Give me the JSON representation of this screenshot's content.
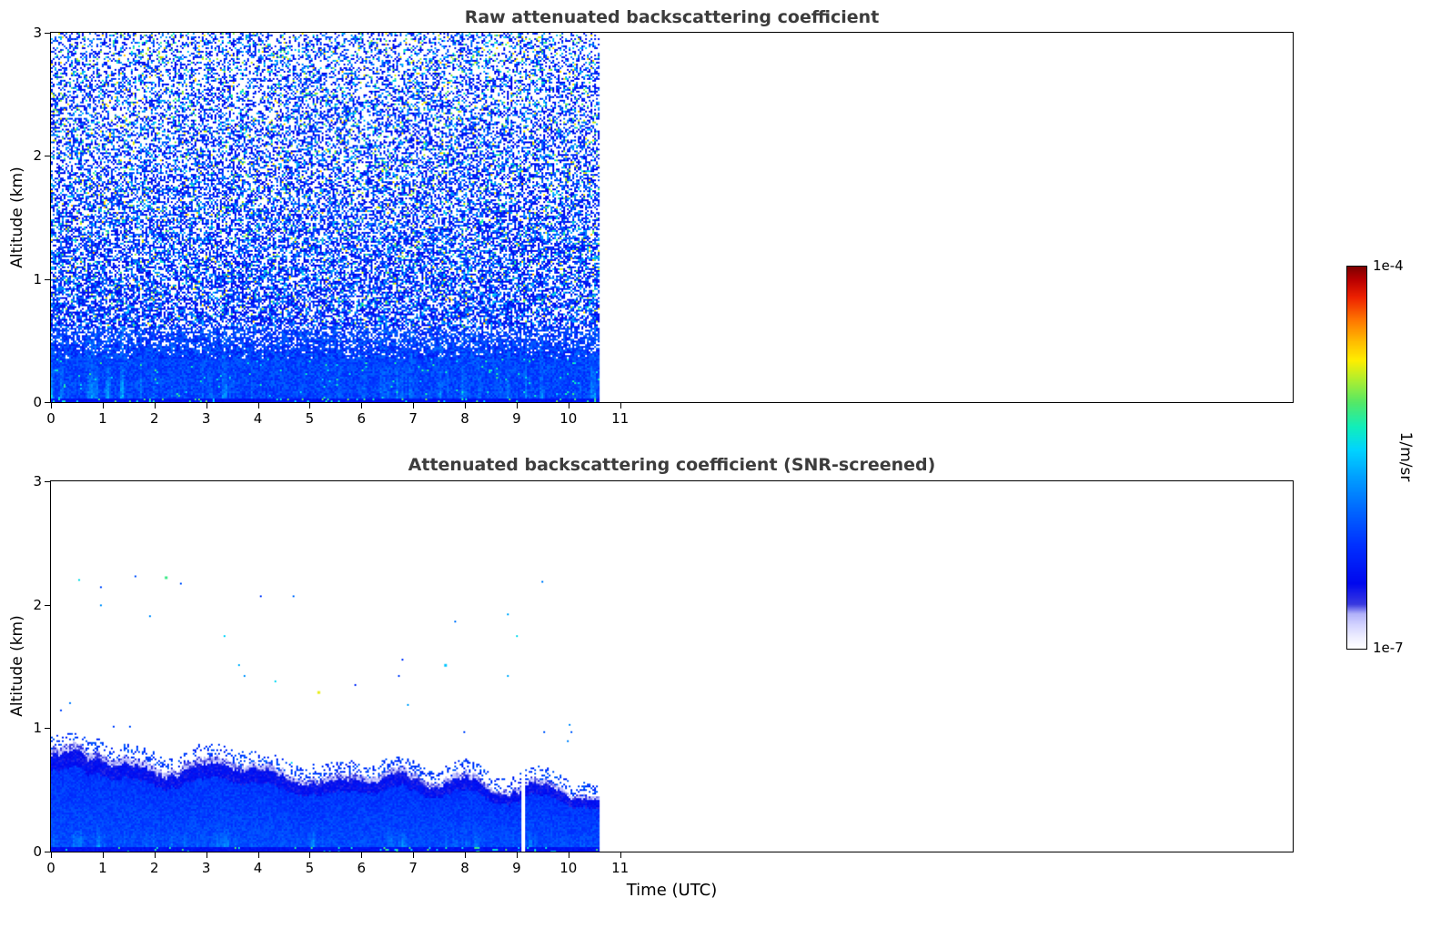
{
  "figure": {
    "xlabel": "Time (UTC)",
    "background": "#ffffff",
    "colorbar": {
      "label": "1/m/sr",
      "top_label": "1e-4",
      "bottom_label": "1e-7",
      "stops": [
        [
          0.0,
          "#ffffff"
        ],
        [
          0.03,
          "#eeeeff"
        ],
        [
          0.06,
          "#d4d4ff"
        ],
        [
          0.09,
          "#b2b2fa"
        ],
        [
          0.115,
          "#3a3ae0"
        ],
        [
          0.17,
          "#0008ee"
        ],
        [
          0.27,
          "#0030ff"
        ],
        [
          0.36,
          "#0066ff"
        ],
        [
          0.45,
          "#00a0ff"
        ],
        [
          0.52,
          "#00d4ff"
        ],
        [
          0.58,
          "#11eebb"
        ],
        [
          0.645,
          "#55e866"
        ],
        [
          0.7,
          "#a8ee33"
        ],
        [
          0.755,
          "#ffee00"
        ],
        [
          0.805,
          "#ffbb00"
        ],
        [
          0.86,
          "#ff7700"
        ],
        [
          0.92,
          "#ee2200"
        ],
        [
          0.965,
          "#bb0000"
        ],
        [
          1.0,
          "#7f0000"
        ]
      ]
    }
  },
  "chart_data": [
    {
      "type": "heatmap",
      "title": "Raw attenuated backscattering coefficient",
      "ylabel": "Altitude (km)",
      "xlabel": "",
      "xlim": [
        0,
        24
      ],
      "ylim": [
        0,
        3
      ],
      "xticks": [
        0,
        1,
        2,
        3,
        4,
        5,
        6,
        7,
        8,
        9,
        10,
        11
      ],
      "yticks": [
        0,
        1,
        2,
        3
      ],
      "time_range_with_data": [
        0,
        10.6
      ],
      "value_range": [
        "1e-7",
        "1e-4"
      ],
      "units": "1/m/sr",
      "seed": 20240612,
      "description": "Noisy raw lidar attenuated backscatter: dense blue aerosol layer below ~0.6 km with brighter cyan streaks near the surface, speckled blue/cyan/green noise aloft up to 3 km; white (no data) after 10.6 UTC."
    },
    {
      "type": "heatmap",
      "title": "Attenuated backscattering coefficient (SNR-screened)",
      "ylabel": "Altitude (km)",
      "xlabel": "Time (UTC)",
      "xlim": [
        0,
        24
      ],
      "ylim": [
        0,
        3
      ],
      "xticks": [
        0,
        1,
        2,
        3,
        4,
        5,
        6,
        7,
        8,
        9,
        10,
        11
      ],
      "yticks": [
        0,
        1,
        2,
        3
      ],
      "time_range_with_data": [
        0,
        10.6
      ],
      "value_range": [
        "1e-7",
        "1e-4"
      ],
      "units": "1/m/sr",
      "seed": 77031,
      "boundary_layer": {
        "h0": 0.8,
        "slope": 0.031,
        "bump_time": 7.9,
        "bump_height": 0.12,
        "bump_width": 0.45
      },
      "gap_time": 9.12,
      "outliers": [
        {
          "t": 2.2,
          "z": 2.23,
          "u": 0.62
        },
        {
          "t": 5.15,
          "z": 1.3,
          "u": 0.74
        },
        {
          "t": 7.6,
          "z": 1.52,
          "u": 0.5
        }
      ],
      "description": "SNR-screened backscatter: only the boundary-layer aerosol remains, a solid blue layer from the surface up to ~0.85 km at 0 UTC descending to ~0.5 km by 10.6 UTC, with a ragged light-blue top edge, bright streaks near the ground, a few isolated specks aloft and a thin white data gap near 9.1 UTC."
    }
  ]
}
